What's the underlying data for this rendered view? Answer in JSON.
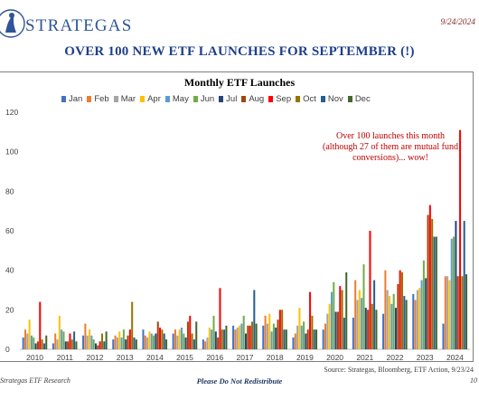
{
  "header": {
    "brand": "STRATEGAS",
    "date": "9/24/2024",
    "title": "OVER 100 NEW ETF LAUNCHES FOR SEPTEMBER (!)"
  },
  "annotation": "Over 100 launches this month (although 27 of them are mutual fund conversions)... wow!",
  "footer": {
    "left": "Strategas ETF Research",
    "center": "Please Do Not Redistribute",
    "source": "Source: Strategas, Bloomberg, ETF Action, 9/23/24",
    "page": "10"
  },
  "chart_data": {
    "type": "bar",
    "title": "Monthly ETF Launches",
    "xlabel": "",
    "ylabel": "",
    "ylim": [
      0,
      120
    ],
    "yticks": [
      0,
      20,
      40,
      60,
      80,
      100,
      120
    ],
    "grid": false,
    "legend_position": "top",
    "categories": [
      "2010",
      "2011",
      "2012",
      "2013",
      "2014",
      "2015",
      "2016",
      "2017",
      "2018",
      "2019",
      "2020",
      "2021",
      "2022",
      "2023",
      "2024"
    ],
    "series": [
      {
        "name": "Jan",
        "color": "#4472c4",
        "values": [
          6,
          3,
          7,
          5,
          10,
          8,
          5,
          12,
          12,
          6,
          10,
          16,
          18,
          28,
          13
        ]
      },
      {
        "name": "Feb",
        "color": "#ed7d31",
        "values": [
          10,
          8,
          13,
          7,
          7,
          10,
          4,
          10,
          17,
          8,
          13,
          35,
          40,
          25,
          37
        ]
      },
      {
        "name": "Mar",
        "color": "#a5a5a5",
        "values": [
          8,
          5,
          7,
          6,
          6,
          7,
          6,
          11,
          13,
          12,
          18,
          25,
          30,
          30,
          37
        ]
      },
      {
        "name": "Apr",
        "color": "#ffc000",
        "values": [
          15,
          17,
          10,
          9,
          9,
          10,
          11,
          12,
          18,
          21,
          23,
          30,
          27,
          31,
          35
        ]
      },
      {
        "name": "May",
        "color": "#5b9bd5",
        "values": [
          7,
          10,
          7,
          6,
          8,
          11,
          10,
          13,
          9,
          12,
          29,
          26,
          23,
          35,
          56
        ]
      },
      {
        "name": "Jun",
        "color": "#70ad47",
        "values": [
          6,
          9,
          5,
          10,
          7,
          8,
          17,
          17,
          13,
          14,
          34,
          43,
          28,
          45,
          57
        ]
      },
      {
        "name": "Jul",
        "color": "#264478",
        "values": [
          3,
          4,
          3,
          5,
          8,
          6,
          9,
          8,
          11,
          8,
          19,
          21,
          21,
          36,
          65
        ]
      },
      {
        "name": "Aug",
        "color": "#9e480e",
        "values": [
          4,
          4,
          2,
          7,
          14,
          14,
          6,
          12,
          15,
          10,
          19,
          20,
          33,
          68,
          37
        ]
      },
      {
        "name": "Sep",
        "color": "#ff0000",
        "values": [
          24,
          8,
          4,
          10,
          11,
          17,
          31,
          12,
          20,
          29,
          32,
          60,
          40,
          73,
          111
        ]
      },
      {
        "name": "Oct",
        "color": "#997300",
        "values": [
          5,
          5,
          8,
          24,
          10,
          8,
          10,
          14,
          20,
          17,
          30,
          23,
          39,
          66,
          37
        ]
      },
      {
        "name": "Nov",
        "color": "#255e91",
        "values": [
          3,
          9,
          4,
          6,
          8,
          5,
          10,
          30,
          10,
          10,
          16,
          35,
          27,
          57,
          65
        ]
      },
      {
        "name": "Dec",
        "color": "#43682b",
        "values": [
          7,
          4,
          9,
          5,
          5,
          14,
          12,
          13,
          10,
          10,
          39,
          20,
          25,
          57,
          38
        ]
      }
    ]
  }
}
